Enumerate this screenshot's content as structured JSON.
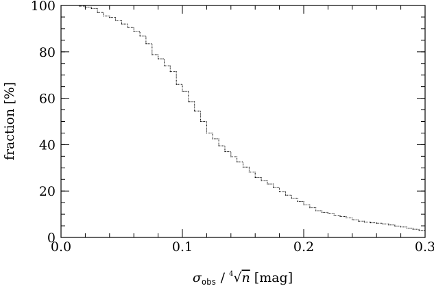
{
  "chart_data": {
    "type": "line",
    "xlabel": "σ_obs / ∜n [mag]",
    "xlabel_parts": {
      "sigma": "σ",
      "sub": "obs",
      "sep": " / ",
      "root_index": "4",
      "root_symbol": "√",
      "radicand": "n",
      "unit": " [mag]"
    },
    "ylabel": "fraction [%]",
    "xlim": [
      0.0,
      0.3
    ],
    "ylim": [
      0,
      100
    ],
    "x_ticks": [
      0.0,
      0.1,
      0.2,
      0.3
    ],
    "x_tick_labels": [
      "0.0",
      "0.1",
      "0.2",
      "0.3"
    ],
    "y_ticks": [
      0,
      20,
      40,
      60,
      80,
      100
    ],
    "y_tick_labels": [
      "0",
      "20",
      "40",
      "60",
      "80",
      "100"
    ],
    "x_minor_step": 0.02,
    "y_minor_step": 5,
    "grid": false,
    "series": [
      {
        "style": "stepped-dotted",
        "x": [
          0.0,
          0.015,
          0.02,
          0.025,
          0.03,
          0.035,
          0.04,
          0.045,
          0.05,
          0.055,
          0.06,
          0.065,
          0.07,
          0.075,
          0.08,
          0.085,
          0.09,
          0.095,
          0.1,
          0.105,
          0.11,
          0.115,
          0.12,
          0.125,
          0.13,
          0.135,
          0.14,
          0.145,
          0.15,
          0.155,
          0.16,
          0.165,
          0.17,
          0.175,
          0.18,
          0.185,
          0.19,
          0.195,
          0.2,
          0.205,
          0.21,
          0.215,
          0.22,
          0.225,
          0.23,
          0.235,
          0.24,
          0.245,
          0.25,
          0.255,
          0.26,
          0.265,
          0.27,
          0.275,
          0.28,
          0.285,
          0.29,
          0.295,
          0.3
        ],
        "y": [
          100,
          99.7,
          99.3,
          98.7,
          97.0,
          95.5,
          94.8,
          93.6,
          92.0,
          90.5,
          88.8,
          86.8,
          83.5,
          78.8,
          77.0,
          74.0,
          71.5,
          66.0,
          63.0,
          58.5,
          54.5,
          50.0,
          45.0,
          42.5,
          39.5,
          37.0,
          34.8,
          32.5,
          30.3,
          28.2,
          25.8,
          24.5,
          23.0,
          21.5,
          19.8,
          18.2,
          16.8,
          15.5,
          14.0,
          12.8,
          11.5,
          10.8,
          10.2,
          9.6,
          9.0,
          8.4,
          7.6,
          7.0,
          6.6,
          6.3,
          6.1,
          5.8,
          5.4,
          4.9,
          4.5,
          4.0,
          3.5,
          3.0,
          2.8
        ]
      }
    ]
  }
}
